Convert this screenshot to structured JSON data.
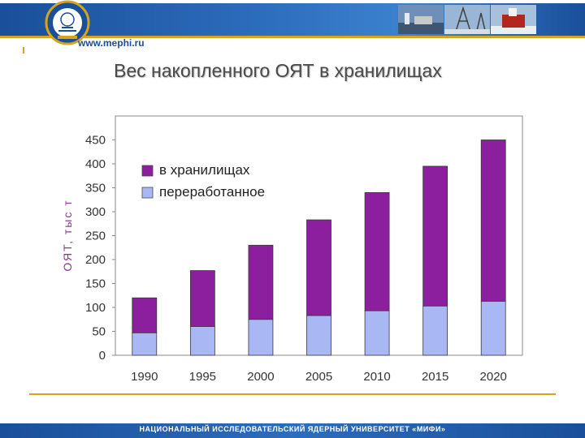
{
  "header": {
    "site_url": "www.mephi.ru",
    "logo_icon": "mephi-emblem-icon",
    "photos_icon": "energy-photos-strip-icon"
  },
  "slide": {
    "title": "Вес накопленного ОЯТ в хранилищах"
  },
  "footer": {
    "text": "НАЦИОНАЛЬНЫЙ ИССЛЕДОВАТЕЛЬСКИЙ ЯДЕРНЫЙ УНИВЕРСИТЕТ «МИФИ»"
  },
  "colors": {
    "brand_blue": "#1a4f9a",
    "accent_gold": "#d6a31c",
    "stored": "#8b1f9e",
    "processed": "#a9b8f5"
  },
  "chart_data": {
    "type": "bar",
    "stacked": true,
    "categories": [
      "1990",
      "1995",
      "2000",
      "2005",
      "2010",
      "2015",
      "2020"
    ],
    "series": [
      {
        "name": "переработанное",
        "values": [
          47,
          60,
          75,
          83,
          93,
          103,
          113
        ],
        "color": "#a9b8f5"
      },
      {
        "name": "в хранилищах",
        "values": [
          73,
          117,
          155,
          200,
          247,
          292,
          337
        ],
        "color": "#8b1f9e"
      }
    ],
    "totals": [
      120,
      177,
      230,
      283,
      340,
      395,
      450
    ],
    "ylabel": "ОЯТ, тыс т",
    "ylim": [
      0,
      500
    ],
    "yticks": [
      0,
      50,
      100,
      150,
      200,
      250,
      300,
      350,
      400,
      450
    ],
    "grid": false,
    "legend_position": "top-left"
  }
}
